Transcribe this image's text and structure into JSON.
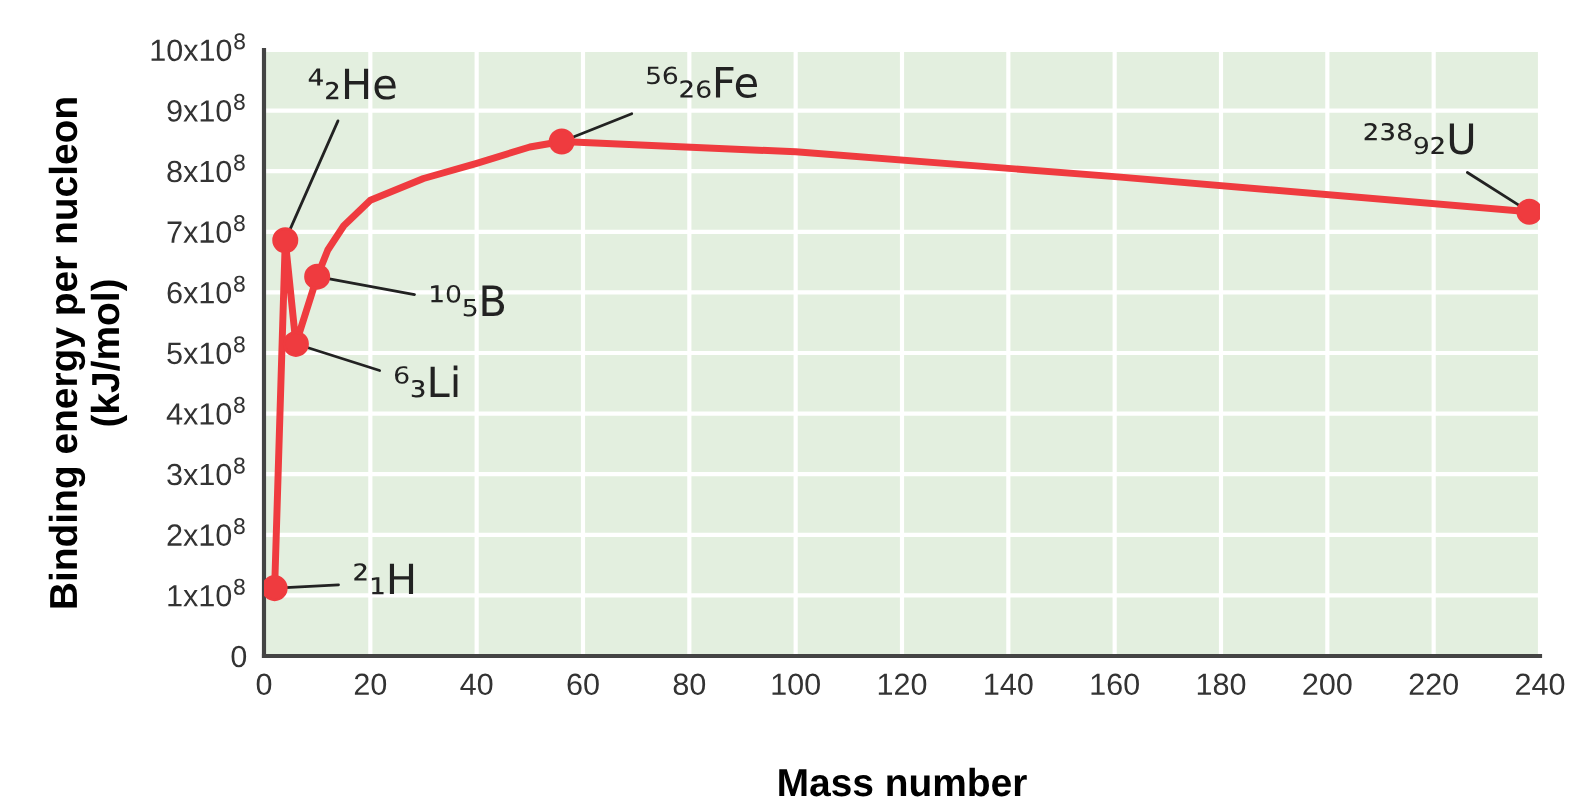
{
  "chart_data": {
    "type": "line",
    "xlabel": "Mass number",
    "ylabel": "Binding energy per nucleon\n(kJ/mol)",
    "xlim": [
      0,
      240
    ],
    "xticks": [
      0,
      20,
      40,
      60,
      80,
      100,
      120,
      140,
      160,
      180,
      200,
      220,
      240
    ],
    "ylim": [
      0,
      1000000000
    ],
    "yticks": [
      0,
      {
        "value": 100000000,
        "label": "1x10$^{8}$"
      },
      {
        "value": 200000000,
        "label": "2x10$^{8}$"
      },
      {
        "value": 300000000,
        "label": "3x10$^{8}$"
      },
      {
        "value": 400000000,
        "label": "4x10$^{8}$"
      },
      {
        "value": 500000000,
        "label": "5x10$^{8}$"
      },
      {
        "value": 600000000,
        "label": "6x10$^{8}$"
      },
      {
        "value": 700000000,
        "label": "7x10$^{8}$"
      },
      {
        "value": 800000000,
        "label": "8x10$^{8}$"
      },
      {
        "value": 900000000,
        "label": "9x10$^{8}$"
      },
      {
        "value": 1000000000,
        "label": "10x10$^{8}$"
      }
    ],
    "grid": true,
    "legend": false,
    "series": [
      {
        "color": "#ef3b3f",
        "marker": "none",
        "line_style": "solid",
        "x": [
          2,
          4,
          6,
          10,
          12,
          15,
          20,
          30,
          40,
          50,
          56,
          100,
          160,
          238
        ],
        "values": [
          112000000,
          686000000,
          515000000,
          626000000,
          670000000,
          710000000,
          752000000,
          788000000,
          813000000,
          840000000,
          849000000,
          832000000,
          791000000,
          733000000
        ]
      },
      {
        "type": "scatter",
        "color": "#ef3b3f",
        "marker": "circle",
        "x": [
          2,
          4,
          6,
          10,
          56,
          238
        ],
        "values": [
          112000000,
          686000000,
          515000000,
          626000000,
          849000000,
          733000000
        ]
      }
    ],
    "annotations": [
      {
        "text": "²₁H",
        "x": 2,
        "y": 112000000
      },
      {
        "text": "⁴₂He",
        "x": 4,
        "y": 686000000
      },
      {
        "text": "⁶₃Li",
        "x": 6,
        "y": 515000000
      },
      {
        "text": "¹⁰₅B",
        "x": 10,
        "y": 626000000
      },
      {
        "text": "⁵⁶₂₆Fe",
        "x": 56,
        "y": 849000000
      },
      {
        "text": "²³⁸₉₂U",
        "x": 238,
        "y": 733000000
      }
    ]
  }
}
